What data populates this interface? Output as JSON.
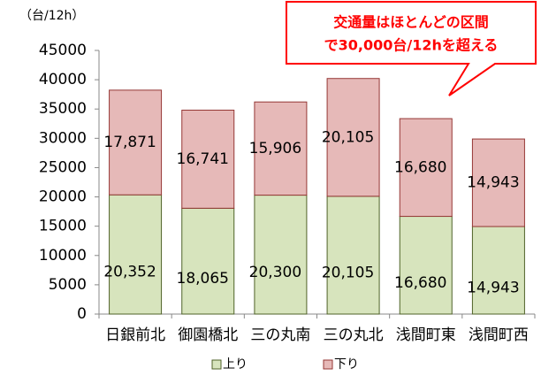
{
  "chart_data": {
    "type": "bar",
    "stacked": true,
    "unit_label": "（台/12h）",
    "annotation": [
      "交通量はほとんどの区間",
      "で30,000台/12hを超える"
    ],
    "categories": [
      "日銀前北",
      "御園橋北",
      "三の丸南",
      "三の丸北",
      "浅間町東",
      "浅間町西"
    ],
    "series": [
      {
        "name": "上り",
        "color": "#d7e4bd",
        "edge": "#4f6228",
        "values": [
          20352,
          18065,
          20300,
          20105,
          16680,
          14943
        ],
        "value_labels": [
          "20,352",
          "18,065",
          "20,300",
          "20,105",
          "16,680",
          "14,943"
        ]
      },
      {
        "name": "下り",
        "color": "#e6b9b8",
        "edge": "#953735",
        "values": [
          17871,
          16741,
          15906,
          20105,
          16680,
          14943
        ],
        "value_labels": [
          "17,871",
          "16,741",
          "15,906",
          "20,105",
          "16,680",
          "14,943"
        ]
      }
    ],
    "ylim": [
      0,
      45000
    ],
    "yticks": [
      0,
      5000,
      10000,
      15000,
      20000,
      25000,
      30000,
      35000,
      40000,
      45000
    ]
  }
}
